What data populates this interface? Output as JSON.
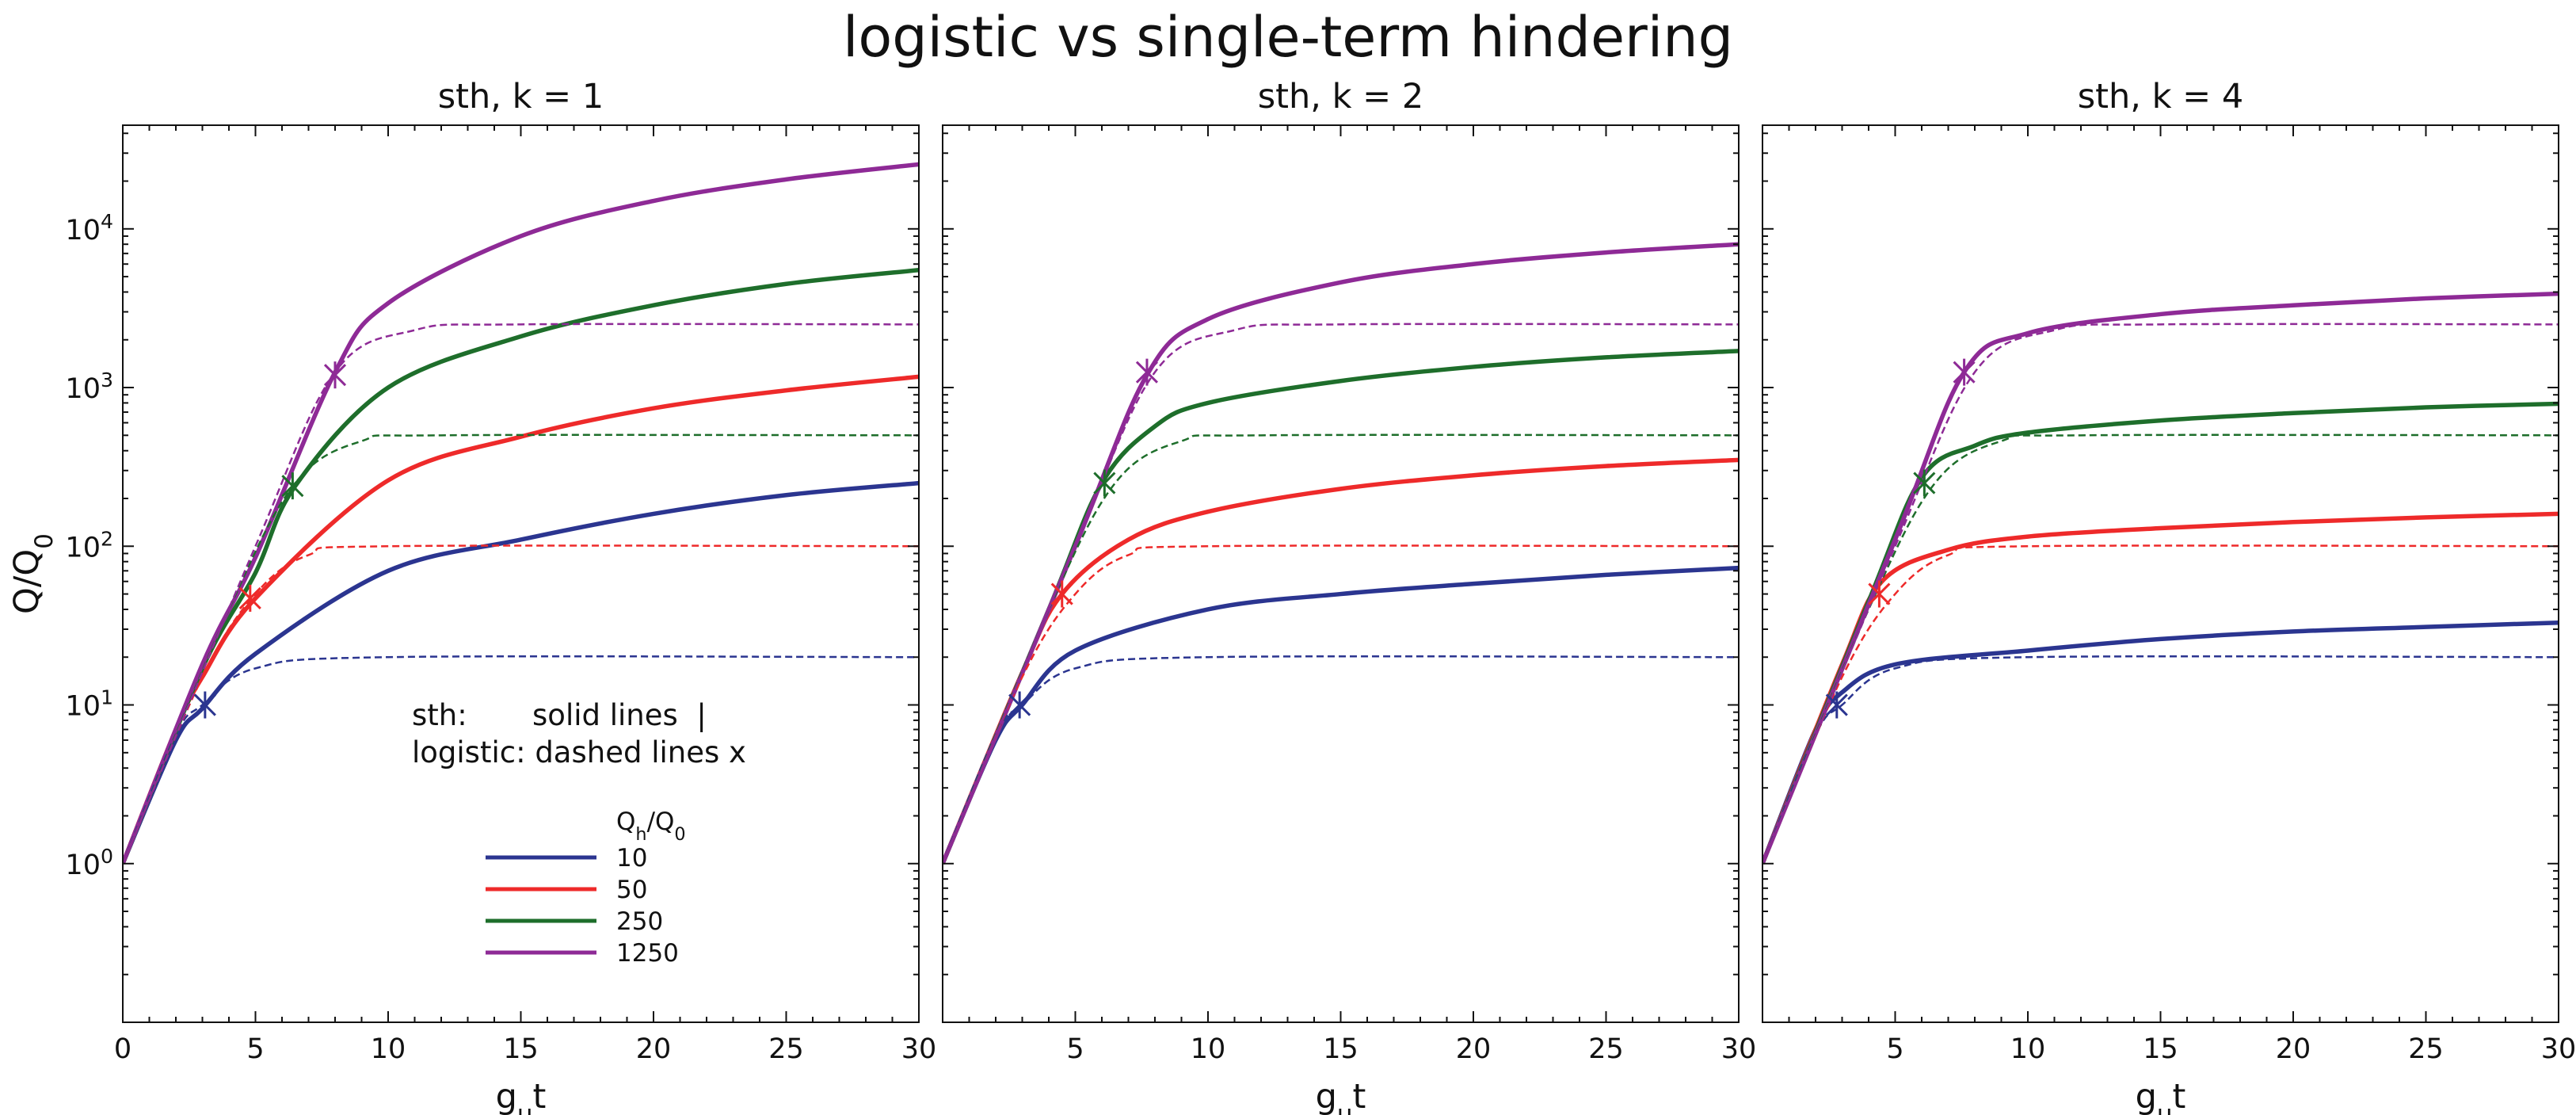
{
  "suptitle": "logistic vs single-term hindering",
  "colors": {
    "10": "#2b3590",
    "50": "#ee2a2a",
    "250": "#1e6e2b",
    "1250": "#8e2a96"
  },
  "annotation": {
    "line1": "sth:       solid lines  |",
    "line2": "logistic: dashed lines x"
  },
  "legend": {
    "title": "Qh/Q0",
    "entries": [
      "10",
      "50",
      "250",
      "1250"
    ]
  },
  "chart_data": [
    {
      "type": "line",
      "title": "sth, k = 1",
      "k": 1,
      "xlabel": "gut",
      "ylabel": "Q/Q0",
      "yscale": "log",
      "xlim": [
        0,
        30
      ],
      "ylim": [
        0.1,
        45000
      ],
      "xticks": [
        0,
        5,
        10,
        15,
        20,
        25,
        30
      ],
      "yticks": [
        "10^0",
        "10^1",
        "10^2",
        "10^3",
        "10^4"
      ],
      "series": [
        {
          "name": "10",
          "style": "solid",
          "x": [
            0,
            2,
            3,
            5,
            10,
            15,
            20,
            25,
            30
          ],
          "y": [
            1,
            6,
            9.5,
            21,
            70,
            110,
            160,
            210,
            250
          ]
        },
        {
          "name": "50",
          "style": "solid",
          "x": [
            0,
            2,
            3,
            5,
            10,
            15,
            20,
            25,
            30
          ],
          "y": [
            1,
            7,
            15,
            47,
            260,
            490,
            740,
            960,
            1170
          ]
        },
        {
          "name": "250",
          "style": "solid",
          "x": [
            0,
            3,
            5,
            6.5,
            10,
            15,
            20,
            25,
            30
          ],
          "y": [
            1,
            17,
            68,
            240,
            1000,
            2100,
            3300,
            4500,
            5500
          ]
        },
        {
          "name": "1250",
          "style": "solid",
          "x": [
            0,
            3,
            5,
            8,
            10,
            15,
            20,
            25,
            30
          ],
          "y": [
            1,
            18,
            85,
            1250,
            3400,
            9000,
            15000,
            20500,
            25500
          ]
        },
        {
          "name": "10",
          "style": "dashed",
          "x": [
            0,
            2,
            3,
            5,
            10,
            30
          ],
          "y": [
            1,
            6.5,
            10,
            17,
            20,
            20
          ]
        },
        {
          "name": "50",
          "style": "dashed",
          "x": [
            0,
            3,
            5,
            7,
            10,
            30
          ],
          "y": [
            1,
            15,
            50,
            88,
            100,
            100
          ]
        },
        {
          "name": "250",
          "style": "dashed",
          "x": [
            0,
            4,
            6.5,
            9,
            12,
            30
          ],
          "y": [
            1,
            40,
            250,
            460,
            500,
            500
          ]
        },
        {
          "name": "1250",
          "style": "dashed",
          "x": [
            0,
            5,
            8,
            11,
            15,
            30
          ],
          "y": [
            1,
            100,
            1250,
            2300,
            2500,
            2500
          ]
        }
      ],
      "markers": [
        {
          "name": "10",
          "x": 3.1,
          "y": 10
        },
        {
          "name": "50",
          "x": 4.8,
          "y": 47
        },
        {
          "name": "250",
          "x": 6.4,
          "y": 240
        },
        {
          "name": "1250",
          "x": 8.0,
          "y": 1200
        }
      ]
    },
    {
      "type": "line",
      "title": "sth, k = 2",
      "k": 2,
      "xlabel": "gut",
      "yscale": "log",
      "xlim": [
        0,
        30
      ],
      "ylim": [
        0.1,
        45000
      ],
      "xticks": [
        5,
        10,
        15,
        20,
        25,
        30
      ],
      "series": [
        {
          "name": "10",
          "style": "solid",
          "x": [
            0,
            2,
            3,
            5,
            10,
            15,
            20,
            25,
            30
          ],
          "y": [
            1,
            6,
            10,
            22,
            40,
            50,
            58,
            66,
            73
          ]
        },
        {
          "name": "50",
          "style": "solid",
          "x": [
            0,
            3,
            4.5,
            7,
            10,
            15,
            20,
            25,
            30
          ],
          "y": [
            1,
            16,
            50,
            110,
            165,
            230,
            280,
            320,
            350
          ]
        },
        {
          "name": "250",
          "style": "solid",
          "x": [
            0,
            4,
            6,
            8,
            10,
            15,
            20,
            25,
            30
          ],
          "y": [
            1,
            40,
            250,
            570,
            800,
            1100,
            1350,
            1550,
            1700
          ]
        },
        {
          "name": "1250",
          "style": "solid",
          "x": [
            0,
            5,
            7.7,
            10,
            15,
            20,
            25,
            30
          ],
          "y": [
            1,
            100,
            1200,
            2700,
            4600,
            6000,
            7100,
            8000
          ]
        },
        {
          "name": "10",
          "style": "dashed",
          "x": [
            0,
            2,
            3,
            5,
            10,
            30
          ],
          "y": [
            1,
            6.5,
            10,
            17,
            20,
            20
          ]
        },
        {
          "name": "50",
          "style": "dashed",
          "x": [
            0,
            3,
            5,
            7,
            10,
            30
          ],
          "y": [
            1,
            15,
            50,
            88,
            100,
            100
          ]
        },
        {
          "name": "250",
          "style": "dashed",
          "x": [
            0,
            4,
            6.5,
            9,
            12,
            30
          ],
          "y": [
            1,
            40,
            250,
            460,
            500,
            500
          ]
        },
        {
          "name": "1250",
          "style": "dashed",
          "x": [
            0,
            5,
            8,
            11,
            15,
            30
          ],
          "y": [
            1,
            100,
            1250,
            2300,
            2500,
            2500
          ]
        }
      ],
      "markers": [
        {
          "name": "10",
          "x": 2.9,
          "y": 10
        },
        {
          "name": "50",
          "x": 4.5,
          "y": 50
        },
        {
          "name": "250",
          "x": 6.1,
          "y": 250
        },
        {
          "name": "1250",
          "x": 7.7,
          "y": 1250
        }
      ]
    },
    {
      "type": "line",
      "title": "sth, k = 4",
      "k": 4,
      "xlabel": "gut",
      "yscale": "log",
      "xlim": [
        0,
        30
      ],
      "ylim": [
        0.1,
        45000
      ],
      "xticks": [
        5,
        10,
        15,
        20,
        25,
        30
      ],
      "series": [
        {
          "name": "10",
          "style": "solid",
          "x": [
            0,
            2,
            3,
            5,
            10,
            15,
            20,
            25,
            30
          ],
          "y": [
            1,
            7,
            12,
            18,
            22,
            26,
            29,
            31,
            33
          ]
        },
        {
          "name": "50",
          "style": "solid",
          "x": [
            0,
            3,
            4.5,
            7,
            10,
            15,
            20,
            25,
            30
          ],
          "y": [
            1,
            18,
            60,
            95,
            115,
            130,
            142,
            152,
            160
          ]
        },
        {
          "name": "250",
          "style": "solid",
          "x": [
            0,
            4,
            6,
            8,
            10,
            15,
            20,
            25,
            30
          ],
          "y": [
            1,
            45,
            270,
            430,
            520,
            620,
            690,
            750,
            790
          ]
        },
        {
          "name": "1250",
          "style": "solid",
          "x": [
            0,
            5,
            7.6,
            10,
            15,
            20,
            25,
            30
          ],
          "y": [
            1,
            110,
            1250,
            2200,
            2900,
            3300,
            3650,
            3900
          ]
        },
        {
          "name": "10",
          "style": "dashed",
          "x": [
            0,
            2,
            3,
            5,
            10,
            30
          ],
          "y": [
            1,
            6.5,
            10,
            17,
            20,
            20
          ]
        },
        {
          "name": "50",
          "style": "dashed",
          "x": [
            0,
            3,
            5,
            7,
            10,
            30
          ],
          "y": [
            1,
            15,
            50,
            88,
            100,
            100
          ]
        },
        {
          "name": "250",
          "style": "dashed",
          "x": [
            0,
            4,
            6.5,
            9,
            12,
            30
          ],
          "y": [
            1,
            40,
            250,
            460,
            500,
            500
          ]
        },
        {
          "name": "1250",
          "style": "dashed",
          "x": [
            0,
            5,
            8,
            11,
            15,
            30
          ],
          "y": [
            1,
            100,
            1250,
            2300,
            2500,
            2500
          ]
        }
      ],
      "markers": [
        {
          "name": "10",
          "x": 2.8,
          "y": 10
        },
        {
          "name": "50",
          "x": 4.4,
          "y": 50
        },
        {
          "name": "250",
          "x": 6.1,
          "y": 250
        },
        {
          "name": "1250",
          "x": 7.6,
          "y": 1250
        }
      ]
    }
  ]
}
